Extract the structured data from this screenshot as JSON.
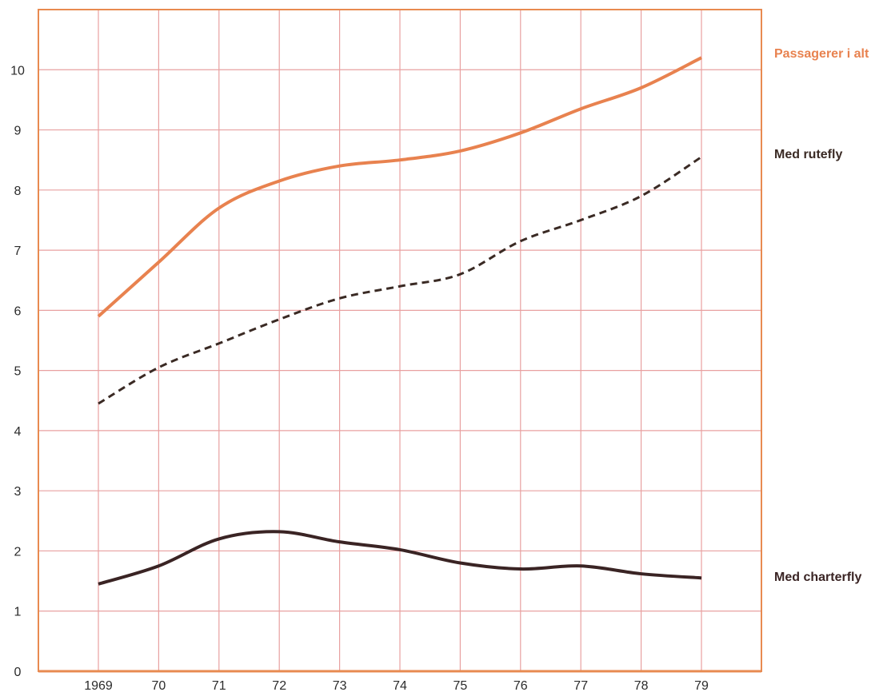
{
  "chart_data": {
    "type": "line",
    "x": [
      "1969",
      "70",
      "71",
      "72",
      "73",
      "74",
      "75",
      "76",
      "77",
      "78",
      "79"
    ],
    "ylim": [
      0,
      11
    ],
    "yticks": [
      0,
      1,
      2,
      3,
      4,
      5,
      6,
      7,
      8,
      9,
      10
    ],
    "grid": true,
    "grid_color": "#e8a0a0",
    "frame_color": "#e88a50",
    "series": [
      {
        "name": "Passagerer i alt",
        "color": "#e8824f",
        "style": "solid",
        "values": [
          5.9,
          6.8,
          7.7,
          8.15,
          8.4,
          8.5,
          8.65,
          8.95,
          9.35,
          9.7,
          10.2
        ]
      },
      {
        "name": "Med rutefly",
        "color": "#3a2a24",
        "style": "dashed",
        "values": [
          4.45,
          5.05,
          5.45,
          5.85,
          6.2,
          6.4,
          6.6,
          7.15,
          7.5,
          7.9,
          8.55
        ]
      },
      {
        "name": "Med charterfly",
        "color": "#3a2424",
        "style": "solid",
        "values": [
          1.45,
          1.75,
          2.2,
          2.32,
          2.15,
          2.02,
          1.8,
          1.7,
          1.75,
          1.62,
          1.55
        ]
      }
    ]
  }
}
